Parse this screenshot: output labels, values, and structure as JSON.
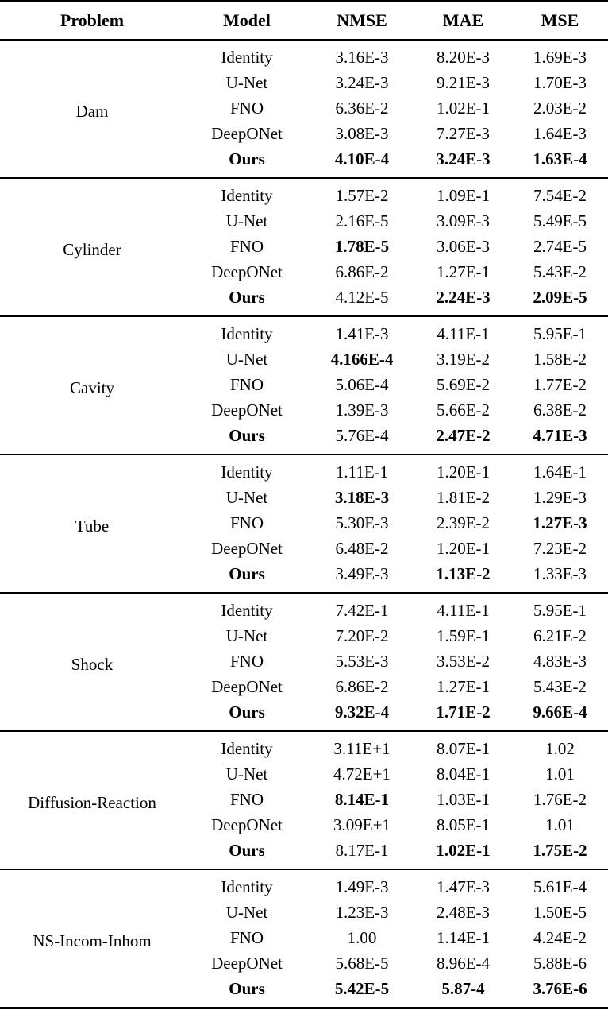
{
  "header": {
    "columns": [
      "Problem",
      "Model",
      "NMSE",
      "MAE",
      "MSE"
    ]
  },
  "sections": [
    {
      "problem": "Dam",
      "rows": [
        {
          "model": "Identity",
          "bold_model": false,
          "values": [
            "3.16E-3",
            "8.20E-3",
            "1.69E-3"
          ],
          "bold_values": [
            false,
            false,
            false
          ]
        },
        {
          "model": "U-Net",
          "bold_model": false,
          "values": [
            "3.24E-3",
            "9.21E-3",
            "1.70E-3"
          ],
          "bold_values": [
            false,
            false,
            false
          ]
        },
        {
          "model": "FNO",
          "bold_model": false,
          "values": [
            "6.36E-2",
            "1.02E-1",
            "2.03E-2"
          ],
          "bold_values": [
            false,
            false,
            false
          ]
        },
        {
          "model": "DeepONet",
          "bold_model": false,
          "values": [
            "3.08E-3",
            "7.27E-3",
            "1.64E-3"
          ],
          "bold_values": [
            false,
            false,
            false
          ]
        },
        {
          "model": "Ours",
          "bold_model": true,
          "values": [
            "4.10E-4",
            "3.24E-3",
            "1.63E-4"
          ],
          "bold_values": [
            true,
            true,
            true
          ]
        }
      ]
    },
    {
      "problem": "Cylinder",
      "rows": [
        {
          "model": "Identity",
          "bold_model": false,
          "values": [
            "1.57E-2",
            "1.09E-1",
            "7.54E-2"
          ],
          "bold_values": [
            false,
            false,
            false
          ]
        },
        {
          "model": "U-Net",
          "bold_model": false,
          "values": [
            "2.16E-5",
            "3.09E-3",
            "5.49E-5"
          ],
          "bold_values": [
            false,
            false,
            false
          ]
        },
        {
          "model": "FNO",
          "bold_model": false,
          "values": [
            "1.78E-5",
            "3.06E-3",
            "2.74E-5"
          ],
          "bold_values": [
            true,
            false,
            false
          ]
        },
        {
          "model": "DeepONet",
          "bold_model": false,
          "values": [
            "6.86E-2",
            "1.27E-1",
            "5.43E-2"
          ],
          "bold_values": [
            false,
            false,
            false
          ]
        },
        {
          "model": "Ours",
          "bold_model": true,
          "values": [
            "4.12E-5",
            "2.24E-3",
            "2.09E-5"
          ],
          "bold_values": [
            false,
            true,
            true
          ]
        }
      ]
    },
    {
      "problem": "Cavity",
      "rows": [
        {
          "model": "Identity",
          "bold_model": false,
          "values": [
            "1.41E-3",
            "4.11E-1",
            "5.95E-1"
          ],
          "bold_values": [
            false,
            false,
            false
          ]
        },
        {
          "model": "U-Net",
          "bold_model": false,
          "values": [
            "4.166E-4",
            "3.19E-2",
            "1.58E-2"
          ],
          "bold_values": [
            true,
            false,
            false
          ]
        },
        {
          "model": "FNO",
          "bold_model": false,
          "values": [
            "5.06E-4",
            "5.69E-2",
            "1.77E-2"
          ],
          "bold_values": [
            false,
            false,
            false
          ]
        },
        {
          "model": "DeepONet",
          "bold_model": false,
          "values": [
            "1.39E-3",
            "5.66E-2",
            "6.38E-2"
          ],
          "bold_values": [
            false,
            false,
            false
          ]
        },
        {
          "model": "Ours",
          "bold_model": true,
          "values": [
            "5.76E-4",
            "2.47E-2",
            "4.71E-3"
          ],
          "bold_values": [
            false,
            true,
            true
          ]
        }
      ]
    },
    {
      "problem": "Tube",
      "rows": [
        {
          "model": "Identity",
          "bold_model": false,
          "values": [
            "1.11E-1",
            "1.20E-1",
            "1.64E-1"
          ],
          "bold_values": [
            false,
            false,
            false
          ]
        },
        {
          "model": "U-Net",
          "bold_model": false,
          "values": [
            "3.18E-3",
            "1.81E-2",
            "1.29E-3"
          ],
          "bold_values": [
            true,
            false,
            false
          ]
        },
        {
          "model": "FNO",
          "bold_model": false,
          "values": [
            "5.30E-3",
            "2.39E-2",
            "1.27E-3"
          ],
          "bold_values": [
            false,
            false,
            true
          ]
        },
        {
          "model": "DeepONet",
          "bold_model": false,
          "values": [
            "6.48E-2",
            "1.20E-1",
            "7.23E-2"
          ],
          "bold_values": [
            false,
            false,
            false
          ]
        },
        {
          "model": "Ours",
          "bold_model": true,
          "values": [
            "3.49E-3",
            "1.13E-2",
            "1.33E-3"
          ],
          "bold_values": [
            false,
            true,
            false
          ]
        }
      ]
    },
    {
      "problem": "Shock",
      "rows": [
        {
          "model": "Identity",
          "bold_model": false,
          "values": [
            "7.42E-1",
            "4.11E-1",
            "5.95E-1"
          ],
          "bold_values": [
            false,
            false,
            false
          ]
        },
        {
          "model": "U-Net",
          "bold_model": false,
          "values": [
            "7.20E-2",
            "1.59E-1",
            "6.21E-2"
          ],
          "bold_values": [
            false,
            false,
            false
          ]
        },
        {
          "model": "FNO",
          "bold_model": false,
          "values": [
            "5.53E-3",
            "3.53E-2",
            "4.83E-3"
          ],
          "bold_values": [
            false,
            false,
            false
          ]
        },
        {
          "model": "DeepONet",
          "bold_model": false,
          "values": [
            "6.86E-2",
            "1.27E-1",
            "5.43E-2"
          ],
          "bold_values": [
            false,
            false,
            false
          ]
        },
        {
          "model": "Ours",
          "bold_model": true,
          "values": [
            "9.32E-4",
            "1.71E-2",
            "9.66E-4"
          ],
          "bold_values": [
            true,
            true,
            true
          ]
        }
      ]
    },
    {
      "problem": "Diffusion-Reaction",
      "rows": [
        {
          "model": "Identity",
          "bold_model": false,
          "values": [
            "3.11E+1",
            "8.07E-1",
            "1.02"
          ],
          "bold_values": [
            false,
            false,
            false
          ]
        },
        {
          "model": "U-Net",
          "bold_model": false,
          "values": [
            "4.72E+1",
            "8.04E-1",
            "1.01"
          ],
          "bold_values": [
            false,
            false,
            false
          ]
        },
        {
          "model": "FNO",
          "bold_model": false,
          "values": [
            "8.14E-1",
            "1.03E-1",
            "1.76E-2"
          ],
          "bold_values": [
            true,
            false,
            false
          ]
        },
        {
          "model": "DeepONet",
          "bold_model": false,
          "values": [
            "3.09E+1",
            "8.05E-1",
            "1.01"
          ],
          "bold_values": [
            false,
            false,
            false
          ]
        },
        {
          "model": "Ours",
          "bold_model": true,
          "values": [
            "8.17E-1",
            "1.02E-1",
            "1.75E-2"
          ],
          "bold_values": [
            false,
            true,
            true
          ]
        }
      ]
    },
    {
      "problem": "NS-Incom-Inhom",
      "rows": [
        {
          "model": "Identity",
          "bold_model": false,
          "values": [
            "1.49E-3",
            "1.47E-3",
            "5.61E-4"
          ],
          "bold_values": [
            false,
            false,
            false
          ]
        },
        {
          "model": "U-Net",
          "bold_model": false,
          "values": [
            "1.23E-3",
            "2.48E-3",
            "1.50E-5"
          ],
          "bold_values": [
            false,
            false,
            false
          ]
        },
        {
          "model": "FNO",
          "bold_model": false,
          "values": [
            "1.00",
            "1.14E-1",
            "4.24E-2"
          ],
          "bold_values": [
            false,
            false,
            false
          ]
        },
        {
          "model": "DeepONet",
          "bold_model": false,
          "values": [
            "5.68E-5",
            "8.96E-4",
            "5.88E-6"
          ],
          "bold_values": [
            false,
            false,
            false
          ]
        },
        {
          "model": "Ours",
          "bold_model": true,
          "values": [
            "5.42E-5",
            "5.87-4",
            "3.76E-6"
          ],
          "bold_values": [
            true,
            true,
            true
          ]
        }
      ]
    }
  ]
}
